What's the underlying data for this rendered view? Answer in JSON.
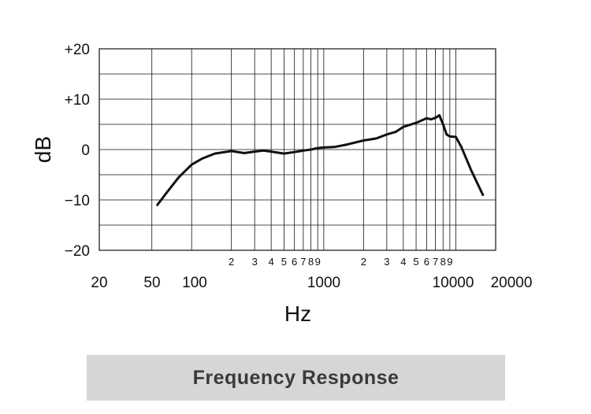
{
  "chart_data": {
    "type": "line",
    "title": "",
    "xlabel": "Hz",
    "ylabel": "dB",
    "x_scale": "log",
    "xlim": [
      20,
      20000
    ],
    "ylim": [
      -20,
      20
    ],
    "grid": true,
    "y_ticks": [
      "+20",
      "+10",
      "0",
      "−10",
      "−20"
    ],
    "y_tick_values": [
      20,
      10,
      0,
      -10,
      -20
    ],
    "x_major_ticks": [
      "20",
      "50",
      "100",
      "1000",
      "10000",
      "20000"
    ],
    "x_minor_tick_labels": [
      {
        "label": "2",
        "value": 200
      },
      {
        "label": "3",
        "value": 300
      },
      {
        "label": "4",
        "value": 400
      },
      {
        "label": "5",
        "value": 500
      },
      {
        "label": "6",
        "value": 600
      },
      {
        "label": "7",
        "value": 700
      },
      {
        "label": "8",
        "value": 800
      },
      {
        "label": "9",
        "value": 900
      },
      {
        "label": "2",
        "value": 2000
      },
      {
        "label": "3",
        "value": 3000
      },
      {
        "label": "4",
        "value": 4000
      },
      {
        "label": "5",
        "value": 5000
      },
      {
        "label": "6",
        "value": 6000
      },
      {
        "label": "7",
        "value": 7000
      },
      {
        "label": "8",
        "value": 8000
      },
      {
        "label": "9",
        "value": 9000
      }
    ],
    "series": [
      {
        "values": [
          [
            55,
            -11
          ],
          [
            65,
            -8.5
          ],
          [
            80,
            -5.5
          ],
          [
            100,
            -3
          ],
          [
            120,
            -1.8
          ],
          [
            150,
            -0.8
          ],
          [
            200,
            -0.3
          ],
          [
            250,
            -0.7
          ],
          [
            300,
            -0.4
          ],
          [
            350,
            -0.2
          ],
          [
            400,
            -0.4
          ],
          [
            500,
            -0.8
          ],
          [
            600,
            -0.5
          ],
          [
            700,
            -0.2
          ],
          [
            800,
            0
          ],
          [
            900,
            0.3
          ],
          [
            1000,
            0.4
          ],
          [
            1200,
            0.5
          ],
          [
            1500,
            1
          ],
          [
            2000,
            1.8
          ],
          [
            2500,
            2.2
          ],
          [
            3000,
            3
          ],
          [
            3500,
            3.5
          ],
          [
            4000,
            4.5
          ],
          [
            5000,
            5.3
          ],
          [
            6000,
            6.2
          ],
          [
            6500,
            6
          ],
          [
            7000,
            6.3
          ],
          [
            7500,
            6.8
          ],
          [
            8000,
            5
          ],
          [
            8500,
            3
          ],
          [
            9000,
            2.6
          ],
          [
            10000,
            2.5
          ],
          [
            11000,
            0.5
          ],
          [
            13000,
            -4
          ],
          [
            16000,
            -9
          ]
        ]
      }
    ]
  },
  "caption": "Frequency Response"
}
